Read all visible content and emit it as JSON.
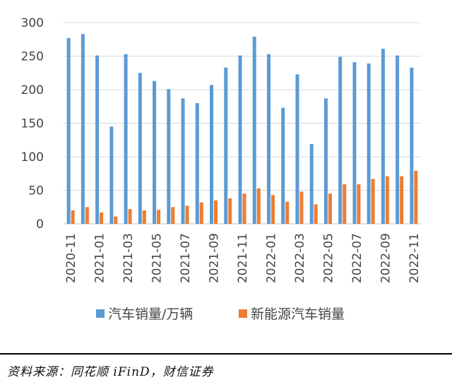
{
  "chart_data": {
    "type": "bar",
    "yticks": [
      0,
      50,
      100,
      150,
      200,
      250,
      300
    ],
    "ylim": [
      0,
      300
    ],
    "grid": true,
    "legend_position": "bottom",
    "categories": [
      "2020-11",
      "2020-12",
      "2021-01",
      "2021-02",
      "2021-03",
      "2021-04",
      "2021-05",
      "2021-06",
      "2021-07",
      "2021-08",
      "2021-09",
      "2021-10",
      "2021-11",
      "2021-12",
      "2022-01",
      "2022-02",
      "2022-03",
      "2022-04",
      "2022-05",
      "2022-06",
      "2022-07",
      "2022-08",
      "2022-09",
      "2022-10",
      "2022-11"
    ],
    "xtick_labels": [
      "2020-11",
      "2021-01",
      "2021-03",
      "2021-05",
      "2021-07",
      "2021-09",
      "2021-11",
      "2022-01",
      "2022-03",
      "2022-05",
      "2022-07",
      "2022-09",
      "2022-11"
    ],
    "series": [
      {
        "name": "汽车销量/万辆",
        "color": "#5B9BD5",
        "values": [
          277,
          283,
          251,
          145,
          253,
          225,
          213,
          201,
          187,
          180,
          207,
          233,
          251,
          279,
          253,
          173,
          223,
          119,
          187,
          249,
          241,
          239,
          261,
          251,
          233
        ]
      },
      {
        "name": "新能源汽车销量",
        "color": "#ED7D31",
        "values": [
          20,
          25,
          17,
          11,
          22,
          20,
          21,
          25,
          27,
          32,
          35,
          38,
          45,
          53,
          43,
          33,
          48,
          29,
          45,
          59,
          59,
          67,
          71,
          71,
          79
        ]
      }
    ]
  },
  "source_note": "资料来源：同花顺 iFinD，财信证券"
}
